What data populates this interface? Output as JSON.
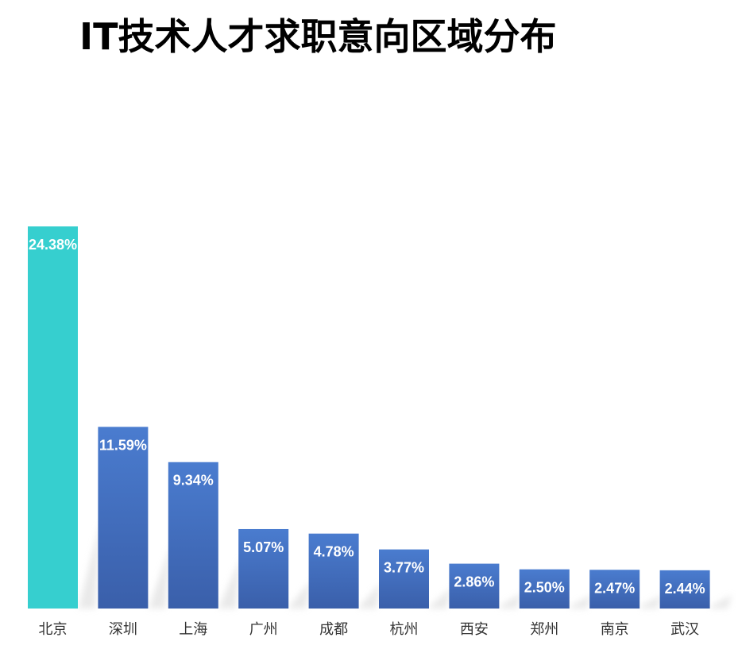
{
  "chart_data": {
    "type": "bar",
    "title": "IT技术人才求职意向区域分布",
    "categories": [
      "北京",
      "深圳",
      "上海",
      "广州",
      "成都",
      "杭州",
      "西安",
      "郑州",
      "南京",
      "武汉"
    ],
    "values": [
      24.38,
      11.59,
      9.34,
      5.07,
      4.78,
      3.77,
      2.86,
      2.5,
      2.47,
      2.44
    ],
    "value_labels": [
      "24.38%",
      "11.59%",
      "9.34%",
      "5.07%",
      "4.78%",
      "3.77%",
      "2.86%",
      "2.50%",
      "2.47%",
      "2.44%"
    ],
    "unit": "%",
    "ylim": [
      0,
      24.38
    ],
    "grid": false,
    "legend": "none",
    "highlight_index": 0,
    "colors": {
      "highlight": "#36CFCF",
      "bar_top": "#4A7CCF",
      "bar_bottom": "#3A5FAA",
      "label": "#FFFFFF",
      "shadow": "#D8D8D8"
    }
  }
}
